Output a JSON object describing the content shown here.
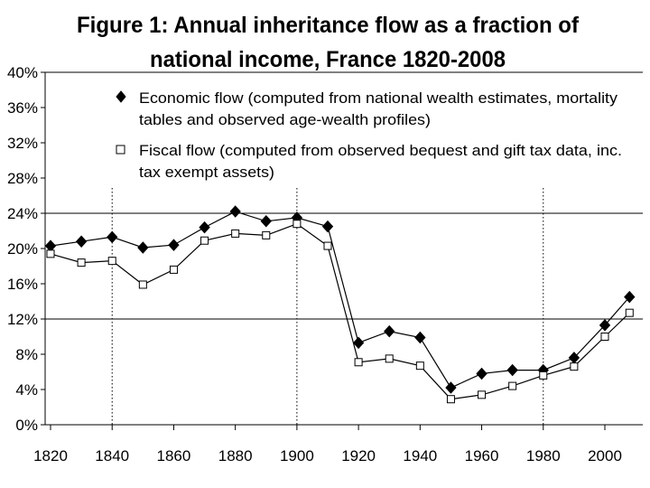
{
  "chart_data": {
    "type": "line",
    "title_lines": [
      "Figure 1: Annual inheritance flow as a fraction of",
      "national income, France 1820-2008"
    ],
    "xlabel": "",
    "ylabel": "",
    "x_ticks": [
      "1820",
      "1840",
      "1860",
      "1880",
      "1900",
      "1920",
      "1940",
      "1960",
      "1980",
      "2000"
    ],
    "y_ticks": [
      "0%",
      "4%",
      "8%",
      "12%",
      "16%",
      "20%",
      "24%",
      "28%",
      "32%",
      "36%",
      "40%"
    ],
    "xlim": [
      1820,
      2010
    ],
    "ylim": [
      0,
      40
    ],
    "grid": {
      "horizontal": [
        12,
        24
      ],
      "vertical_dotted": [
        1840,
        1900,
        1980
      ]
    },
    "legend_position": "top",
    "series": [
      {
        "name": "Economic flow",
        "legend_lines": [
          "Economic flow (computed from national wealth estimates, mortality",
          "tables and observed age-wealth profiles)"
        ],
        "marker": "diamond",
        "color": "#000000",
        "x": [
          1820,
          1830,
          1840,
          1850,
          1860,
          1870,
          1880,
          1890,
          1900,
          1910,
          1920,
          1930,
          1940,
          1950,
          1960,
          1970,
          1980,
          1990,
          2000,
          2008
        ],
        "y": [
          20.3,
          20.8,
          21.3,
          20.1,
          20.4,
          22.4,
          24.2,
          23.1,
          23.5,
          22.5,
          9.3,
          10.6,
          9.9,
          4.2,
          5.8,
          6.2,
          6.2,
          7.6,
          11.3,
          14.5
        ]
      },
      {
        "name": "Fiscal flow",
        "legend_lines": [
          "Fiscal flow (computed from observed bequest and gift tax data, inc.",
          "tax exempt assets)"
        ],
        "marker": "square",
        "color": "#000000",
        "x": [
          1820,
          1830,
          1840,
          1850,
          1860,
          1870,
          1880,
          1890,
          1900,
          1910,
          1920,
          1930,
          1940,
          1950,
          1960,
          1970,
          1980,
          1990,
          2000,
          2008
        ],
        "y": [
          19.4,
          18.4,
          18.6,
          15.9,
          17.6,
          20.9,
          21.7,
          21.5,
          22.8,
          20.3,
          7.1,
          7.5,
          6.7,
          2.9,
          3.4,
          4.4,
          5.6,
          6.6,
          10.0,
          12.7
        ]
      }
    ]
  }
}
